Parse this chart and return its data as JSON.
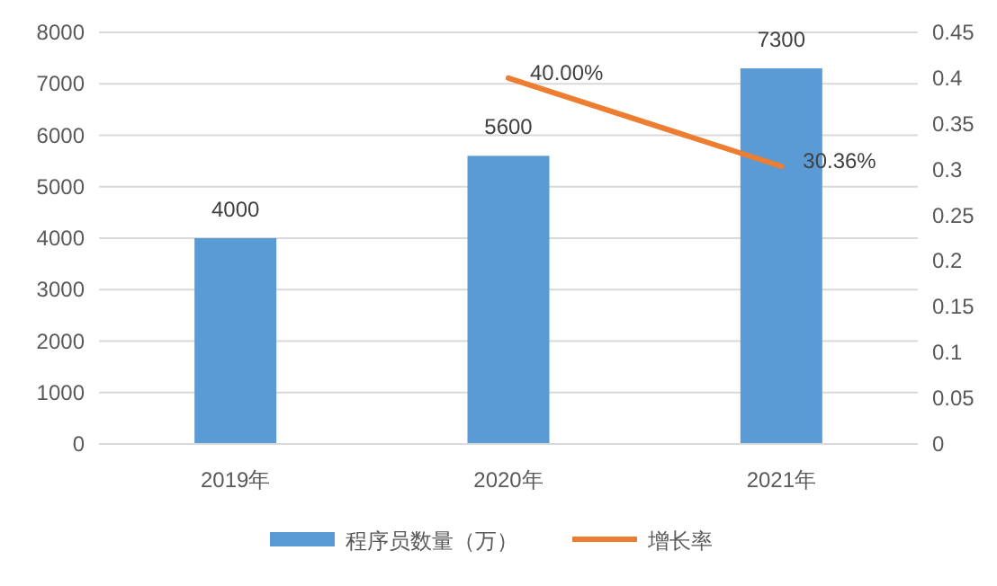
{
  "chart_data": {
    "type": "bar",
    "categories": [
      "2019年",
      "2020年",
      "2021年"
    ],
    "series": [
      {
        "name": "程序员数量（万）",
        "color": "#5b9bd5",
        "values": [
          4000,
          5600,
          7300
        ],
        "value_labels": [
          "4000",
          "5600",
          "7300"
        ]
      },
      {
        "name": "增长率",
        "type": "line",
        "axis": "y2",
        "color": "#ed7d31",
        "values": [
          null,
          0.4,
          0.3036
        ],
        "value_labels": [
          null,
          "40.00%",
          "30.36%"
        ]
      }
    ],
    "ylim": [
      0,
      8000
    ],
    "yticks": [
      0,
      1000,
      2000,
      3000,
      4000,
      5000,
      6000,
      7000,
      8000
    ],
    "y2lim": [
      0,
      0.45
    ],
    "y2ticks": [
      0,
      0.05,
      0.1,
      0.15,
      0.2,
      0.25,
      0.3,
      0.35,
      0.4,
      0.45
    ],
    "grid": "y",
    "legend": "bottom",
    "marker": "none"
  }
}
